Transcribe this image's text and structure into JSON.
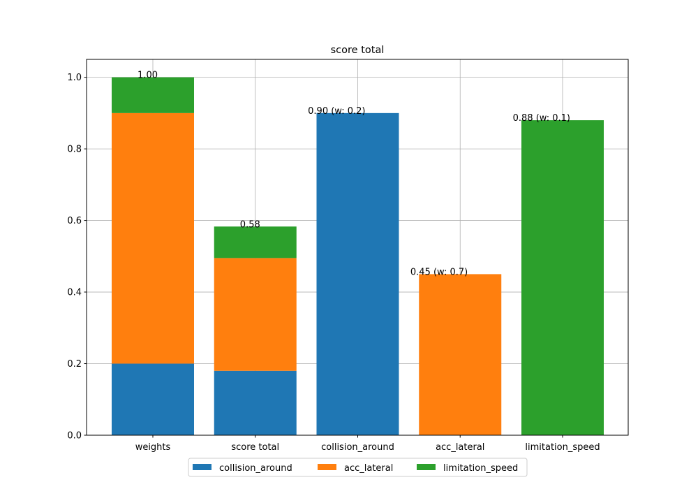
{
  "chart_data": {
    "type": "bar",
    "stacked": true,
    "title": "score total",
    "xlabel": "",
    "ylabel": "",
    "ylim": [
      0,
      1.05
    ],
    "yticks": [
      "0.0",
      "0.2",
      "0.4",
      "0.6",
      "0.8",
      "1.0"
    ],
    "grid": true,
    "legend_position": "bottom-center",
    "categories": [
      "weights",
      "score total",
      "collision_around",
      "acc_lateral",
      "limitation_speed"
    ],
    "series": [
      {
        "name": "collision_around",
        "color": "#1f77b4",
        "values": [
          0.2,
          0.18,
          0.9,
          0,
          0
        ]
      },
      {
        "name": "acc_lateral",
        "color": "#ff7f0e",
        "values": [
          0.7,
          0.315,
          0,
          0.45,
          0
        ]
      },
      {
        "name": "limitation_speed",
        "color": "#2ca02c",
        "values": [
          0.1,
          0.088,
          0,
          0,
          0.88
        ]
      }
    ],
    "data_labels": [
      "1.00",
      "0.58",
      "0.90 (w: 0.2)",
      "0.45 (w: 0.7)",
      "0.88 (w: 0.1)"
    ]
  }
}
